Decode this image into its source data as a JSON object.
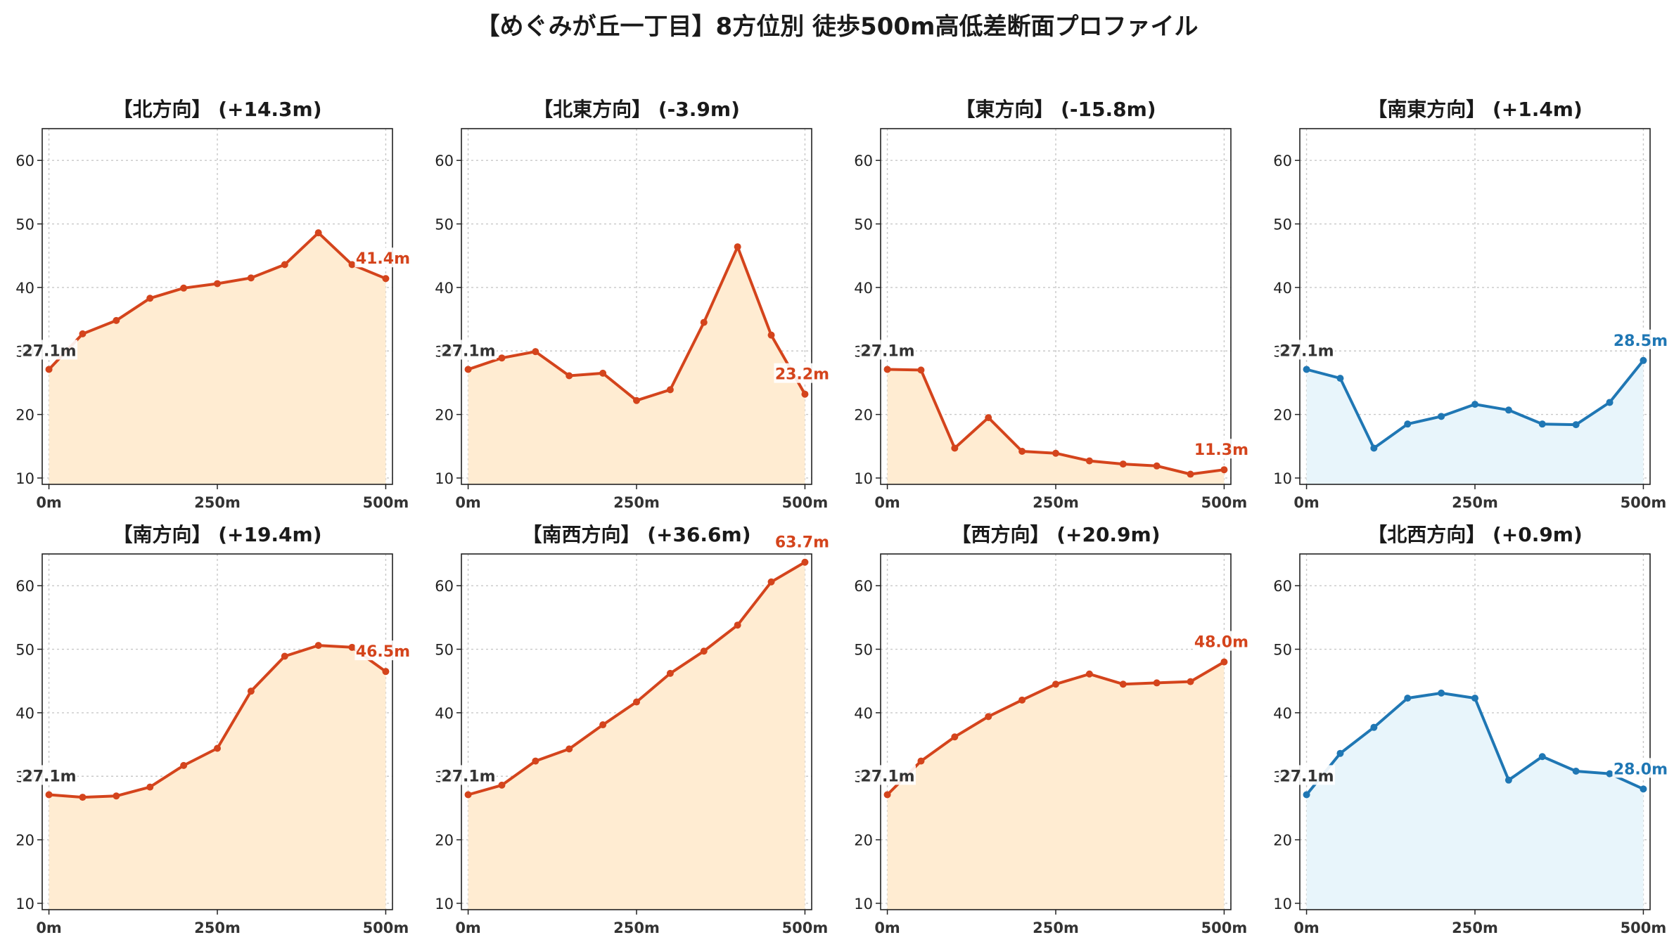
{
  "title": "【めぐみが丘一丁目】8方位別 徒歩500m高低差断面プロファイル",
  "colors": {
    "up_line": "#d4441c",
    "up_fill": "#ffecd2",
    "flat_line": "#1f77b4",
    "flat_fill": "#e8f5fb",
    "start_label": "#333333",
    "grid": "#c8c8c8",
    "axis": "#222222"
  },
  "chart_data": [
    {
      "type": "area",
      "title": "【北方向】 (+14.3m)",
      "variant": "up",
      "x": [
        0,
        50,
        100,
        150,
        200,
        250,
        300,
        350,
        400,
        450,
        500
      ],
      "y": [
        27.1,
        32.7,
        34.8,
        38.3,
        39.9,
        40.6,
        41.5,
        43.6,
        48.6,
        43.6,
        41.4
      ],
      "start_label": "27.1m",
      "end_label": "41.4m",
      "xticks": [
        "0m",
        "250m",
        "500m"
      ],
      "yticks": [
        10,
        20,
        30,
        40,
        50,
        60
      ],
      "ylim": [
        9,
        65
      ],
      "xlim": [
        -10,
        510
      ],
      "grid": true
    },
    {
      "type": "area",
      "title": "【北東方向】 (-3.9m)",
      "variant": "up",
      "x": [
        0,
        50,
        100,
        150,
        200,
        250,
        300,
        350,
        400,
        450,
        500
      ],
      "y": [
        27.1,
        28.9,
        29.9,
        26.1,
        26.5,
        22.2,
        23.9,
        34.5,
        46.4,
        32.5,
        23.2
      ],
      "start_label": "27.1m",
      "end_label": "23.2m",
      "xticks": [
        "0m",
        "250m",
        "500m"
      ],
      "yticks": [
        10,
        20,
        30,
        40,
        50,
        60
      ],
      "ylim": [
        9,
        65
      ],
      "xlim": [
        -10,
        510
      ],
      "grid": true
    },
    {
      "type": "area",
      "title": "【東方向】 (-15.8m)",
      "variant": "up",
      "x": [
        0,
        50,
        100,
        150,
        200,
        250,
        300,
        350,
        400,
        450,
        500
      ],
      "y": [
        27.1,
        27.0,
        14.7,
        19.5,
        14.2,
        13.9,
        12.7,
        12.2,
        11.9,
        10.6,
        11.3
      ],
      "start_label": "27.1m",
      "end_label": "11.3m",
      "xticks": [
        "0m",
        "250m",
        "500m"
      ],
      "yticks": [
        10,
        20,
        30,
        40,
        50,
        60
      ],
      "ylim": [
        9,
        65
      ],
      "xlim": [
        -10,
        510
      ],
      "grid": true
    },
    {
      "type": "area",
      "title": "【南東方向】 (+1.4m)",
      "variant": "flat",
      "x": [
        0,
        50,
        100,
        150,
        200,
        250,
        300,
        350,
        400,
        450,
        500
      ],
      "y": [
        27.1,
        25.7,
        14.7,
        18.5,
        19.7,
        21.6,
        20.7,
        18.5,
        18.4,
        21.9,
        28.5
      ],
      "start_label": "27.1m",
      "end_label": "28.5m",
      "xticks": [
        "0m",
        "250m",
        "500m"
      ],
      "yticks": [
        10,
        20,
        30,
        40,
        50,
        60
      ],
      "ylim": [
        9,
        65
      ],
      "xlim": [
        -10,
        510
      ],
      "grid": true
    },
    {
      "type": "area",
      "title": "【南方向】 (+19.4m)",
      "variant": "up",
      "x": [
        0,
        50,
        100,
        150,
        200,
        250,
        300,
        350,
        400,
        450,
        500
      ],
      "y": [
        27.1,
        26.7,
        26.9,
        28.3,
        31.7,
        34.4,
        43.4,
        48.9,
        50.6,
        50.3,
        46.5
      ],
      "start_label": "27.1m",
      "end_label": "46.5m",
      "xticks": [
        "0m",
        "250m",
        "500m"
      ],
      "yticks": [
        10,
        20,
        30,
        40,
        50,
        60
      ],
      "ylim": [
        9,
        65
      ],
      "xlim": [
        -10,
        510
      ],
      "grid": true
    },
    {
      "type": "area",
      "title": "【南西方向】 (+36.6m)",
      "variant": "up",
      "x": [
        0,
        50,
        100,
        150,
        200,
        250,
        300,
        350,
        400,
        450,
        500
      ],
      "y": [
        27.1,
        28.6,
        32.4,
        34.3,
        38.1,
        41.7,
        46.2,
        49.7,
        53.8,
        60.6,
        63.7
      ],
      "start_label": "27.1m",
      "end_label": "63.7m",
      "xticks": [
        "0m",
        "250m",
        "500m"
      ],
      "yticks": [
        10,
        20,
        30,
        40,
        50,
        60
      ],
      "ylim": [
        9,
        65
      ],
      "xlim": [
        -10,
        510
      ],
      "grid": true
    },
    {
      "type": "area",
      "title": "【西方向】 (+20.9m)",
      "variant": "up",
      "x": [
        0,
        50,
        100,
        150,
        200,
        250,
        300,
        350,
        400,
        450,
        500
      ],
      "y": [
        27.1,
        32.4,
        36.2,
        39.4,
        42.0,
        44.5,
        46.1,
        44.5,
        44.7,
        44.9,
        48.0
      ],
      "start_label": "27.1m",
      "end_label": "48.0m",
      "xticks": [
        "0m",
        "250m",
        "500m"
      ],
      "yticks": [
        10,
        20,
        30,
        40,
        50,
        60
      ],
      "ylim": [
        9,
        65
      ],
      "xlim": [
        -10,
        510
      ],
      "grid": true
    },
    {
      "type": "area",
      "title": "【北西方向】 (+0.9m)",
      "variant": "flat",
      "x": [
        0,
        50,
        100,
        150,
        200,
        250,
        300,
        350,
        400,
        450,
        500
      ],
      "y": [
        27.1,
        33.6,
        37.7,
        42.3,
        43.1,
        42.3,
        29.4,
        33.1,
        30.8,
        30.4,
        28.0
      ],
      "start_label": "27.1m",
      "end_label": "28.0m",
      "xticks": [
        "0m",
        "250m",
        "500m"
      ],
      "yticks": [
        10,
        20,
        30,
        40,
        50,
        60
      ],
      "ylim": [
        9,
        65
      ],
      "xlim": [
        -10,
        510
      ],
      "grid": true
    }
  ]
}
